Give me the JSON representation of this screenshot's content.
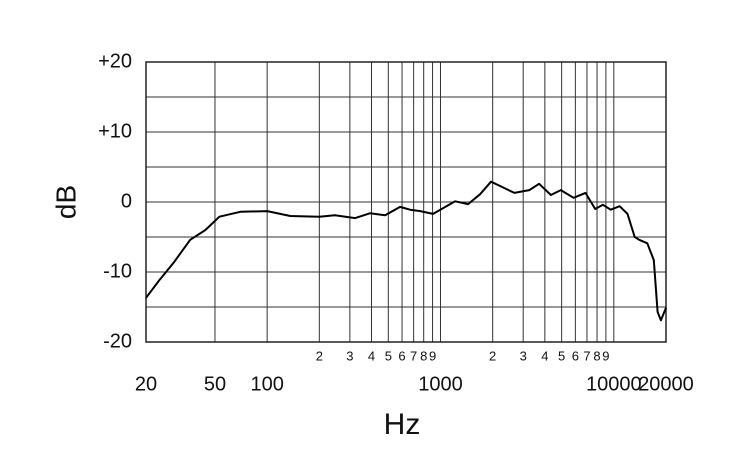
{
  "chart_data": {
    "type": "line",
    "xlabel": "Hz",
    "ylabel": "dB",
    "log_x": true,
    "grid": true,
    "xlim": [
      20,
      20000
    ],
    "ylim": [
      -20,
      20
    ],
    "xticks": [
      20,
      50,
      100,
      {
        "value": 200,
        "label": "2"
      },
      {
        "value": 300,
        "label": "3"
      },
      {
        "value": 400,
        "label": "4"
      },
      {
        "value": 500,
        "label": "5"
      },
      {
        "value": 600,
        "label": "6"
      },
      {
        "value": 700,
        "label": "7"
      },
      {
        "value": 800,
        "label": "8"
      },
      {
        "value": 900,
        "label": "9"
      },
      1000,
      {
        "value": 2000,
        "label": "2"
      },
      {
        "value": 3000,
        "label": "3"
      },
      {
        "value": 4000,
        "label": "4"
      },
      {
        "value": 5000,
        "label": "5"
      },
      {
        "value": 6000,
        "label": "6"
      },
      {
        "value": 7000,
        "label": "7"
      },
      {
        "value": 8000,
        "label": "8"
      },
      {
        "value": 9000,
        "label": "9"
      },
      10000,
      20000
    ],
    "yticks": [
      {
        "value": 20,
        "label": "+20"
      },
      {
        "value": 10,
        "label": "+10"
      },
      0,
      -10,
      -20
    ],
    "yminor": [
      15,
      5,
      -5,
      -15
    ],
    "color": "#000000",
    "x": [
      20,
      24,
      29,
      36,
      44,
      53,
      70,
      100,
      136,
      200,
      246,
      322,
      393,
      479,
      585,
      668,
      764,
      907,
      1066,
      1216,
      1443,
      1691,
      1955,
      2199,
      2670,
      3255,
      3707,
      4335,
      4946,
      5864,
      6862,
      7813,
      8650,
      9600,
      10800,
      12000,
      13200,
      14000,
      15600,
      17000,
      17900,
      18700,
      20000
    ],
    "values": [
      -13.7,
      -11.1,
      -8.6,
      -5.4,
      -4,
      -2.1,
      -1.4,
      -1.3,
      -2,
      -2.1,
      -1.9,
      -2.3,
      -1.6,
      -1.9,
      -0.7,
      -1.1,
      -1.3,
      -1.7,
      -0.7,
      0.1,
      -0.3,
      1.1,
      2.9,
      2.3,
      1.3,
      1.7,
      2.6,
      1,
      1.7,
      0.6,
      1.3,
      -1,
      -0.4,
      -1.1,
      -0.6,
      -1.7,
      -5,
      -5.4,
      -5.9,
      -8.3,
      -15.7,
      -16.9,
      -15.1
    ]
  }
}
